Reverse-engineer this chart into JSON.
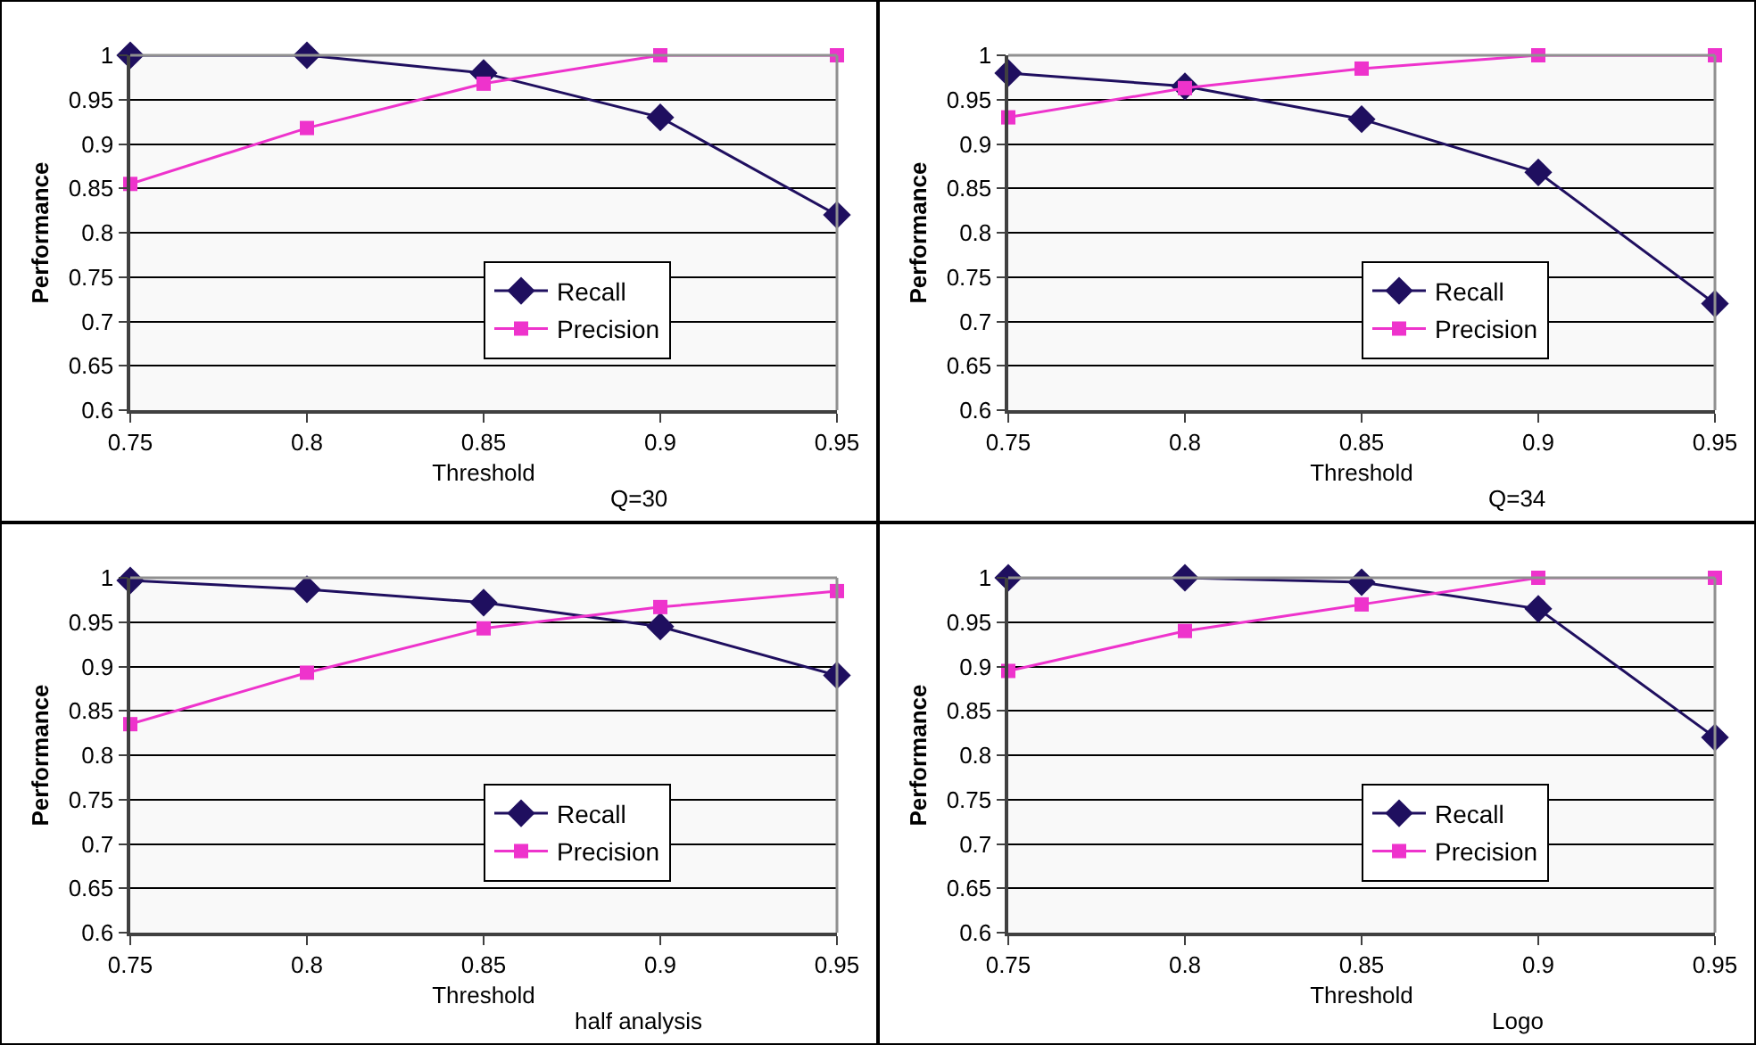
{
  "chart_data": [
    {
      "type": "line",
      "xlabel": "Threshold",
      "ylabel": "Performance",
      "annotations": [
        "Q=30"
      ],
      "categories": [
        "0.75",
        "0.8",
        "0.85",
        "0.9",
        "0.95"
      ],
      "ylim": [
        0.6,
        1
      ],
      "yticks": [
        0.6,
        0.65,
        0.7,
        0.75,
        0.8,
        0.85,
        0.9,
        0.95,
        1
      ],
      "grid": "y",
      "legend": "center",
      "series": [
        {
          "name": "Recall",
          "color": "#1f0f5f",
          "marker": "diamond",
          "values": [
            1,
            1,
            0.98,
            0.93,
            0.82
          ]
        },
        {
          "name": "Precision",
          "color": "#ee33cc",
          "marker": "square",
          "values": [
            0.855,
            0.918,
            0.968,
            1,
            1
          ]
        }
      ]
    },
    {
      "type": "line",
      "xlabel": "Threshold",
      "ylabel": "Performance",
      "annotations": [
        "Q=34"
      ],
      "categories": [
        "0.75",
        "0.8",
        "0.85",
        "0.9",
        "0.95"
      ],
      "ylim": [
        0.6,
        1
      ],
      "yticks": [
        0.6,
        0.65,
        0.7,
        0.75,
        0.8,
        0.85,
        0.9,
        0.95,
        1
      ],
      "grid": "y",
      "legend": "center",
      "series": [
        {
          "name": "Recall",
          "color": "#1f0f5f",
          "marker": "diamond",
          "values": [
            0.98,
            0.965,
            0.928,
            0.868,
            0.72
          ]
        },
        {
          "name": "Precision",
          "color": "#ee33cc",
          "marker": "square",
          "values": [
            0.93,
            0.963,
            0.985,
            1,
            1
          ]
        }
      ]
    },
    {
      "type": "line",
      "xlabel": "Threshold",
      "ylabel": "Performance",
      "annotations": [
        "half analysis"
      ],
      "categories": [
        "0.75",
        "0.8",
        "0.85",
        "0.9",
        "0.95"
      ],
      "ylim": [
        0.6,
        1
      ],
      "yticks": [
        0.6,
        0.65,
        0.7,
        0.75,
        0.8,
        0.85,
        0.9,
        0.95,
        1
      ],
      "grid": "y",
      "legend": "center",
      "series": [
        {
          "name": "Recall",
          "color": "#1f0f5f",
          "marker": "diamond",
          "values": [
            0.997,
            0.987,
            0.972,
            0.945,
            0.89
          ]
        },
        {
          "name": "Precision",
          "color": "#ee33cc",
          "marker": "square",
          "values": [
            0.835,
            0.893,
            0.943,
            0.967,
            0.985
          ]
        }
      ]
    },
    {
      "type": "line",
      "xlabel": "Threshold",
      "ylabel": "Performance",
      "annotations": [
        "Logo"
      ],
      "categories": [
        "0.75",
        "0.8",
        "0.85",
        "0.9",
        "0.95"
      ],
      "ylim": [
        0.6,
        1
      ],
      "yticks": [
        0.6,
        0.65,
        0.7,
        0.75,
        0.8,
        0.85,
        0.9,
        0.95,
        1
      ],
      "grid": "y",
      "legend": "center",
      "series": [
        {
          "name": "Recall",
          "color": "#1f0f5f",
          "marker": "diamond",
          "values": [
            1,
            1,
            0.995,
            0.965,
            0.82
          ]
        },
        {
          "name": "Precision",
          "color": "#ee33cc",
          "marker": "square",
          "values": [
            0.895,
            0.94,
            0.97,
            1,
            1
          ]
        }
      ]
    }
  ]
}
